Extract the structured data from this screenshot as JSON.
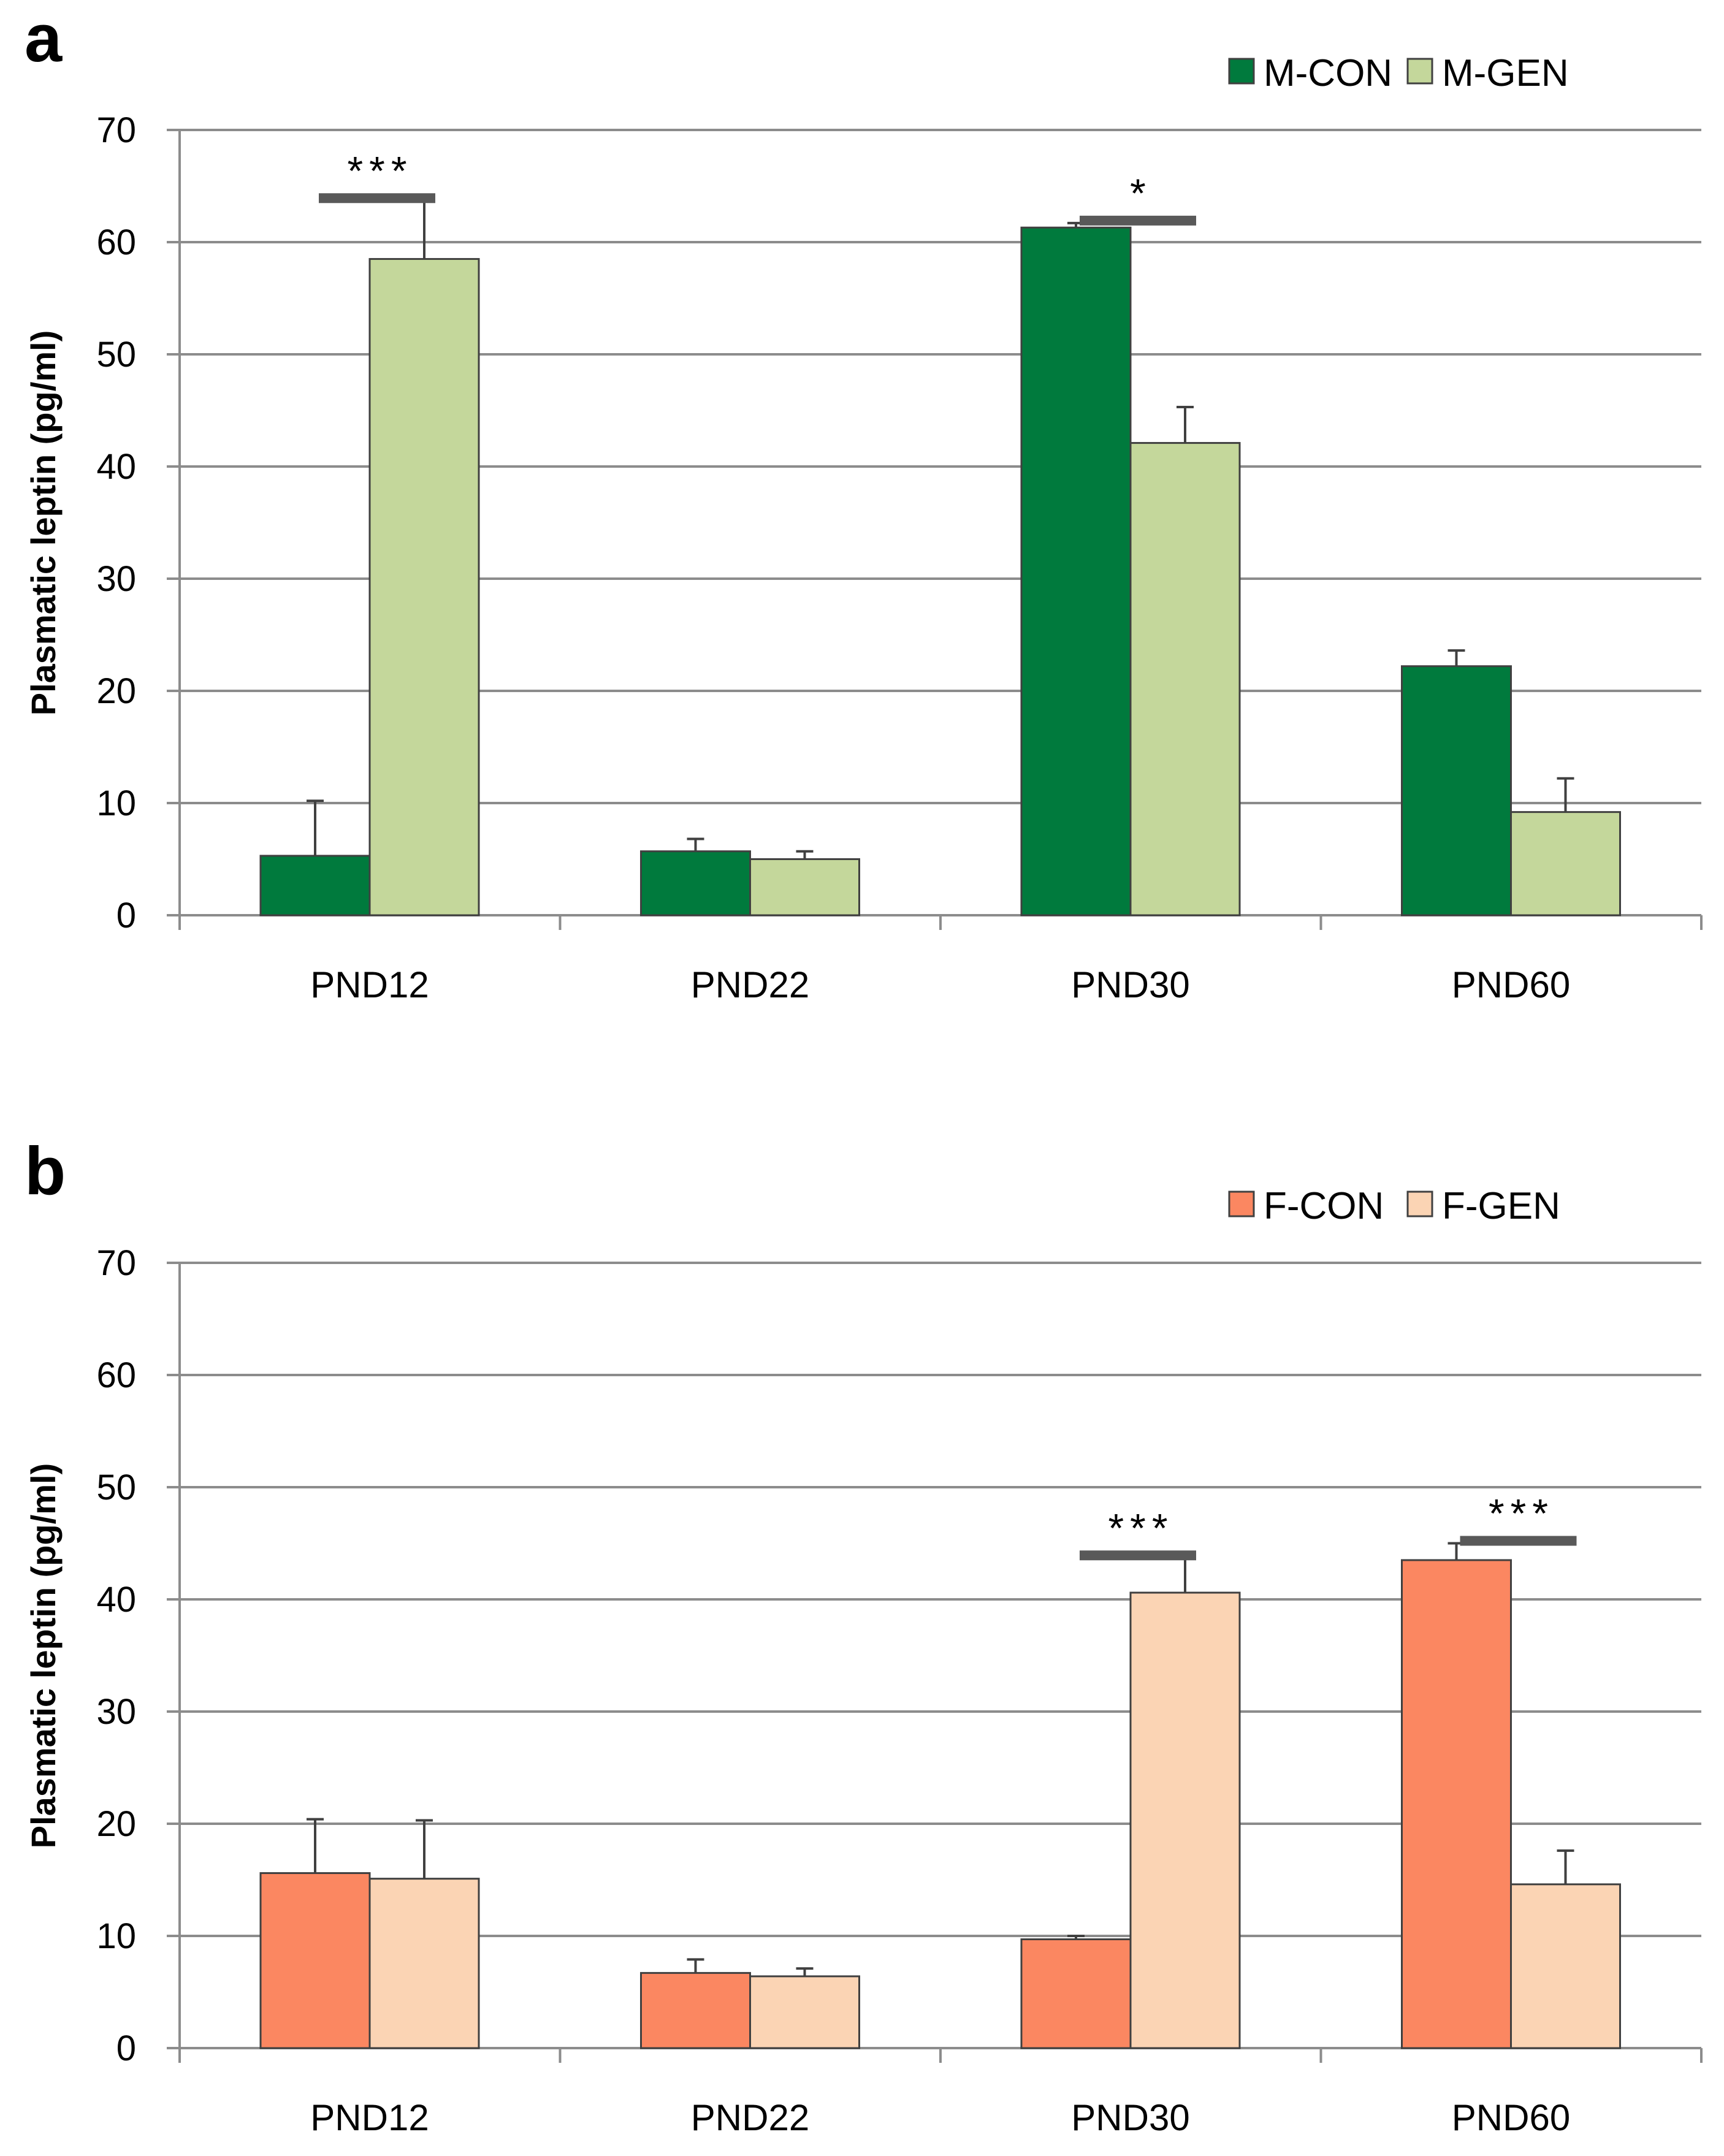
{
  "chart_data": [
    {
      "panel_label": "a",
      "type": "bar",
      "categories": [
        "PND12",
        "PND22",
        "PND30",
        "PND60"
      ],
      "ylabel": "Plasmatic leptin (pg/ml)",
      "xlabel": "",
      "ylim": [
        0,
        70
      ],
      "yticks": [
        0,
        10,
        20,
        30,
        40,
        50,
        60,
        70
      ],
      "grid": true,
      "legend_position": "top-right",
      "series": [
        {
          "name": "M-CON",
          "color": "#007a3d",
          "values": [
            5.3,
            5.7,
            61.3,
            22.2
          ],
          "errors": [
            4.9,
            1.1,
            0.4,
            1.4
          ]
        },
        {
          "name": "M-GEN",
          "color": "#c4d79b",
          "values": [
            58.5,
            5.0,
            42.1,
            9.2
          ],
          "errors": [
            5.2,
            0.7,
            3.2,
            3.0
          ]
        }
      ],
      "annotations": [
        {
          "category": "PND12",
          "text": "***"
        },
        {
          "category": "PND30",
          "text": "*"
        }
      ]
    },
    {
      "panel_label": "b",
      "type": "bar",
      "categories": [
        "PND12",
        "PND22",
        "PND30",
        "PND60"
      ],
      "ylabel": "Plasmatic leptin (pg/ml)",
      "xlabel": "",
      "ylim": [
        0,
        70
      ],
      "yticks": [
        0,
        10,
        20,
        30,
        40,
        50,
        60,
        70
      ],
      "grid": true,
      "legend_position": "top-right",
      "series": [
        {
          "name": "F-CON",
          "color": "#fb8761",
          "values": [
            15.6,
            6.7,
            9.7,
            43.5
          ],
          "errors": [
            4.8,
            1.2,
            0.3,
            1.5
          ]
        },
        {
          "name": "F-GEN",
          "color": "#fbd4b4",
          "values": [
            15.1,
            6.4,
            40.6,
            14.6
          ],
          "errors": [
            5.2,
            0.7,
            3.1,
            3.0
          ]
        }
      ],
      "annotations": [
        {
          "category": "PND30",
          "text": "***"
        },
        {
          "category": "PND60",
          "text": "***"
        }
      ]
    }
  ]
}
